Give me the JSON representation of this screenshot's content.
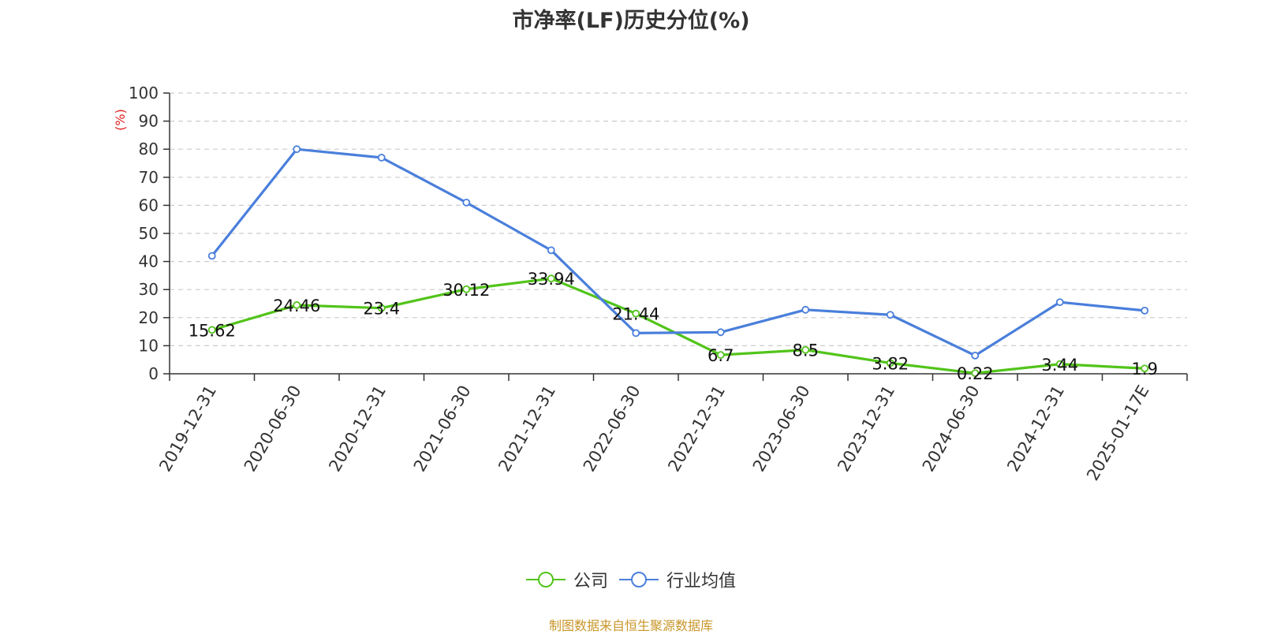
{
  "title": "市净率(LF)历史分位(%)",
  "source": "制图数据来自恒生聚源数据库",
  "chart_data": {
    "type": "line",
    "title": "市净率(LF)历史分位(%)",
    "ylabel": "(%)",
    "ylim": [
      0,
      100
    ],
    "yticks": [
      0,
      10,
      20,
      30,
      40,
      50,
      60,
      70,
      80,
      90,
      100
    ],
    "grid": true,
    "legend_position": "bottom-center",
    "categories": [
      "2019-12-31",
      "2020-06-30",
      "2020-12-31",
      "2021-06-30",
      "2021-12-31",
      "2022-06-30",
      "2022-12-31",
      "2023-06-30",
      "2023-12-31",
      "2024-06-30",
      "2024-12-31",
      "2025-01-17E"
    ],
    "series": [
      {
        "name": "公司",
        "color": "#52c41a",
        "values": [
          15.62,
          24.46,
          23.4,
          30.12,
          33.94,
          21.44,
          6.7,
          8.5,
          3.82,
          0.22,
          3.44,
          1.9
        ],
        "labels": [
          "15.62",
          "24.46",
          "23.4",
          "30.12",
          "33.94",
          "21.44",
          "6.7",
          "8.5",
          "3.82",
          "0.22",
          "3.44",
          "1.9"
        ]
      },
      {
        "name": "行业均值",
        "color": "#4a7fdb",
        "values": [
          42,
          80,
          77,
          61,
          44,
          14.5,
          14.8,
          22.8,
          21,
          6.5,
          25.5,
          22.5
        ]
      }
    ]
  }
}
